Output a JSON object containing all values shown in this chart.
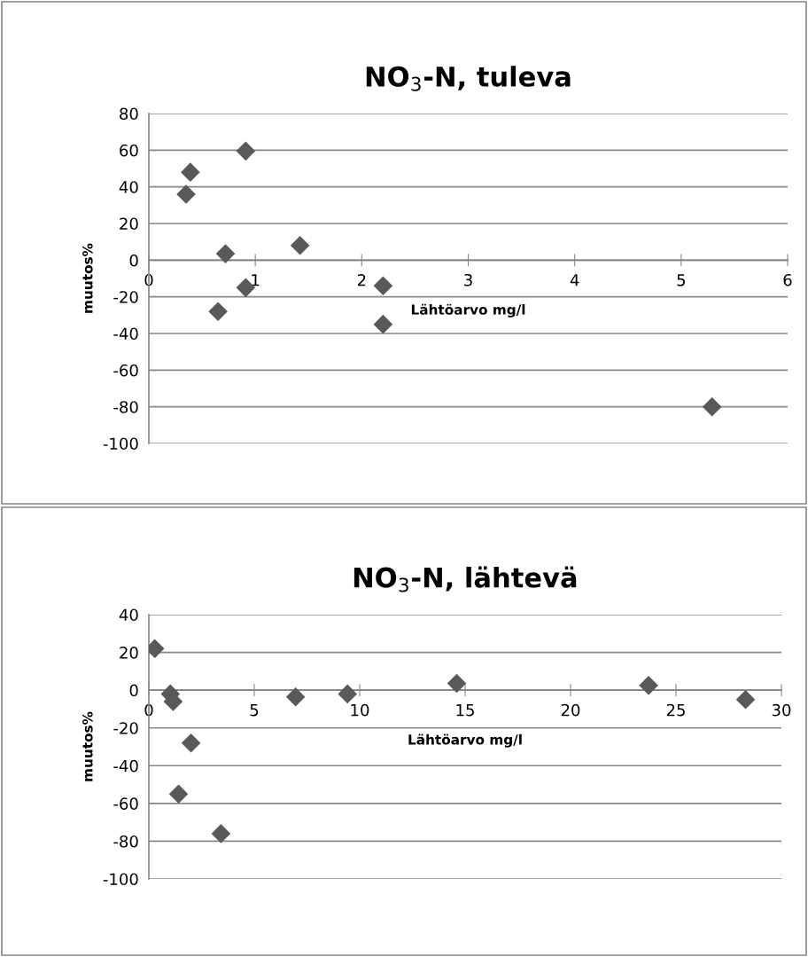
{
  "chart_data": [
    {
      "type": "scatter",
      "title": "NO$_{3}$-N, tuleva",
      "xlabel": "Lähtöarvo mg/l",
      "ylabel": "muutos%",
      "series": [
        {
          "color": "#595959",
          "x": [
            0.35,
            0.39,
            0.91,
            0.72,
            1.42,
            0.91,
            0.65,
            2.2,
            2.2,
            5.29
          ],
          "values": [
            36,
            48,
            59.5,
            3.5,
            8,
            -15,
            -28,
            -14,
            -35,
            -80
          ]
        }
      ],
      "xlim": [
        0,
        6
      ],
      "xticks": [
        0,
        1,
        2,
        3,
        4,
        5,
        6
      ],
      "ylim": [
        -100,
        80
      ],
      "yticks": [
        -100,
        -80,
        -60,
        -40,
        -20,
        0,
        20,
        40,
        60,
        80
      ],
      "grid": "y",
      "marker": "diamond"
    },
    {
      "type": "scatter",
      "title": "NO$_{3}$-N, lähtevä",
      "xlabel": "Lähtöarvo mg/l",
      "ylabel": "muutos%",
      "series": [
        {
          "color": "#595959",
          "x": [
            0.28,
            1.02,
            1.15,
            2.0,
            1.41,
            3.42,
            6.96,
            9.42,
            14.6,
            23.7,
            28.3
          ],
          "values": [
            22,
            -2,
            -6,
            -28,
            -55,
            -76,
            -3.6,
            -2,
            3.6,
            2.5,
            -5
          ]
        }
      ],
      "xlim": [
        0,
        30
      ],
      "xticks": [
        0,
        5,
        10,
        15,
        20,
        25,
        30
      ],
      "ylim": [
        -100,
        40
      ],
      "yticks": [
        -100,
        -80,
        -60,
        -40,
        -20,
        0,
        20,
        40
      ],
      "grid": "y",
      "marker": "diamond"
    }
  ]
}
